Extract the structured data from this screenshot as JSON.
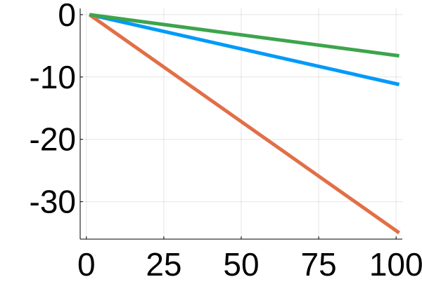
{
  "chart_data": {
    "type": "line",
    "title": "",
    "xlabel": "",
    "ylabel": "",
    "xlim": [
      -2,
      102
    ],
    "ylim": [
      -36,
      1
    ],
    "x_ticks": [
      0,
      25,
      50,
      75,
      100
    ],
    "x_tick_labels": [
      "0",
      "25",
      "50",
      "75",
      "100"
    ],
    "y_ticks": [
      0,
      -10,
      -20,
      -30
    ],
    "y_tick_labels": [
      "0",
      "-10",
      "-20",
      "-30"
    ],
    "grid": true,
    "legend": "none",
    "series": [
      {
        "color": "#009AF9",
        "x": [
          1,
          101
        ],
        "y": [
          0,
          -11.2
        ]
      },
      {
        "color": "#E26F46",
        "x": [
          1,
          101
        ],
        "y": [
          0,
          -35
        ]
      },
      {
        "color": "#3DA44D",
        "x": [
          1,
          101
        ],
        "y": [
          0,
          -6.6
        ]
      }
    ]
  }
}
